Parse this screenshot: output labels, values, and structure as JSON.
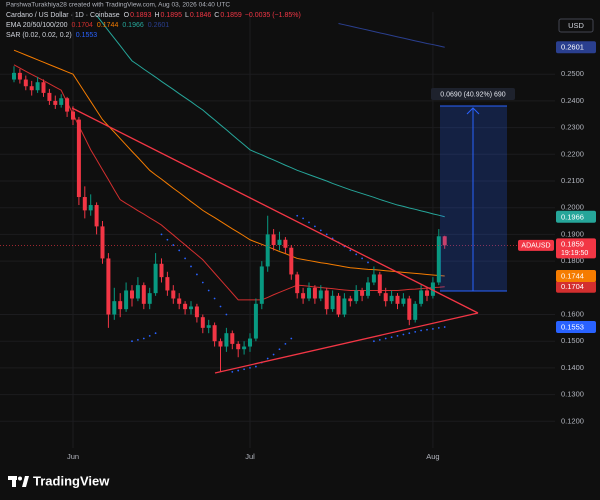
{
  "header": {
    "attribution": "ParshwaTurakhiya28 created with TradingView.com, Aug 03, 2026 04:40 UTC"
  },
  "footer": {
    "brand": "TradingView"
  },
  "chart_data": {
    "type": "candlestick",
    "title": "Cardano / US Dollar · 1D · Coinbase",
    "ohlc_labels": [
      "O",
      "H",
      "L",
      "C"
    ],
    "change": "−0.0035 (−1.85%)",
    "currency": "USD",
    "symbol": "ADAUSD",
    "countdown": "19:19:50",
    "annotations": {
      "measure_label": "0.0690 (40.92%) 690"
    },
    "categories": [
      null,
      null,
      null,
      null,
      null,
      null,
      null,
      null,
      null,
      null,
      "Jun",
      null,
      null,
      null,
      null,
      null,
      null,
      null,
      null,
      null,
      null,
      null,
      null,
      null,
      null,
      null,
      null,
      null,
      null,
      null,
      null,
      null,
      null,
      null,
      null,
      null,
      null,
      null,
      null,
      null,
      "Jul",
      null,
      null,
      null,
      null,
      null,
      null,
      null,
      null,
      null,
      null,
      null,
      null,
      null,
      null,
      null,
      null,
      null,
      null,
      null,
      null,
      null,
      null,
      null,
      null,
      null,
      null,
      null,
      null,
      null,
      null,
      "Aug",
      null,
      null
    ],
    "candles": {
      "up_color": "#089981",
      "down_color": "#f23645",
      "open": [
        0.248,
        0.2505,
        0.248,
        0.2455,
        0.244,
        0.247,
        0.243,
        0.24,
        0.2385,
        0.241,
        0.236,
        0.233,
        0.204,
        0.199,
        0.201,
        0.193,
        0.181,
        0.16,
        0.165,
        0.162,
        0.169,
        0.166,
        0.171,
        0.164,
        0.168,
        0.179,
        0.174,
        0.169,
        0.166,
        0.164,
        0.162,
        0.163,
        0.159,
        0.155,
        0.156,
        0.15,
        0.148,
        0.153,
        0.149,
        0.147,
        0.148,
        0.151,
        0.164,
        0.178,
        0.19,
        0.186,
        0.188,
        0.185,
        0.175,
        0.168,
        0.166,
        0.17,
        0.166,
        0.169,
        0.162,
        0.167,
        0.16,
        0.166,
        0.165,
        0.169,
        0.167,
        0.172,
        0.175,
        0.168,
        0.165,
        0.167,
        0.164,
        0.166,
        0.158,
        0.164,
        0.169,
        0.167,
        0.172,
        0.1893
      ],
      "high": [
        0.253,
        0.252,
        0.2495,
        0.2475,
        0.249,
        0.248,
        0.2445,
        0.242,
        0.2425,
        0.2415,
        0.238,
        0.234,
        0.208,
        0.205,
        0.202,
        0.195,
        0.183,
        0.17,
        0.168,
        0.172,
        0.171,
        0.174,
        0.172,
        0.17,
        0.183,
        0.181,
        0.176,
        0.171,
        0.168,
        0.165,
        0.165,
        0.164,
        0.16,
        0.158,
        0.157,
        0.151,
        0.155,
        0.154,
        0.15,
        0.15,
        0.153,
        0.166,
        0.18,
        0.197,
        0.192,
        0.191,
        0.189,
        0.186,
        0.176,
        0.17,
        0.172,
        0.171,
        0.171,
        0.17,
        0.169,
        0.168,
        0.168,
        0.167,
        0.171,
        0.17,
        0.174,
        0.178,
        0.176,
        0.17,
        0.169,
        0.168,
        0.168,
        0.167,
        0.165,
        0.171,
        0.17,
        0.174,
        0.192,
        0.1895
      ],
      "low": [
        0.247,
        0.2465,
        0.244,
        0.242,
        0.243,
        0.2415,
        0.2385,
        0.237,
        0.2375,
        0.234,
        0.231,
        0.201,
        0.196,
        0.197,
        0.19,
        0.179,
        0.155,
        0.158,
        0.159,
        0.161,
        0.163,
        0.165,
        0.162,
        0.162,
        0.167,
        0.172,
        0.167,
        0.164,
        0.162,
        0.16,
        0.16,
        0.157,
        0.153,
        0.153,
        0.148,
        0.1385,
        0.146,
        0.147,
        0.144,
        0.145,
        0.146,
        0.15,
        0.162,
        0.176,
        0.184,
        0.184,
        0.183,
        0.173,
        0.166,
        0.164,
        0.165,
        0.164,
        0.165,
        0.16,
        0.161,
        0.159,
        0.159,
        0.163,
        0.164,
        0.165,
        0.166,
        0.171,
        0.167,
        0.163,
        0.164,
        0.162,
        0.163,
        0.156,
        0.157,
        0.163,
        0.165,
        0.166,
        0.171,
        0.1846
      ],
      "close": [
        0.2505,
        0.248,
        0.2455,
        0.244,
        0.247,
        0.243,
        0.24,
        0.2385,
        0.241,
        0.236,
        0.233,
        0.204,
        0.199,
        0.201,
        0.193,
        0.181,
        0.16,
        0.165,
        0.162,
        0.169,
        0.166,
        0.171,
        0.164,
        0.168,
        0.179,
        0.174,
        0.169,
        0.166,
        0.164,
        0.162,
        0.163,
        0.159,
        0.155,
        0.156,
        0.15,
        0.148,
        0.153,
        0.149,
        0.147,
        0.148,
        0.151,
        0.164,
        0.178,
        0.19,
        0.186,
        0.188,
        0.185,
        0.175,
        0.168,
        0.166,
        0.17,
        0.166,
        0.169,
        0.162,
        0.167,
        0.16,
        0.166,
        0.165,
        0.169,
        0.167,
        0.172,
        0.175,
        0.168,
        0.165,
        0.167,
        0.164,
        0.166,
        0.158,
        0.164,
        0.169,
        0.167,
        0.172,
        0.1893,
        0.1859
      ]
    },
    "indicators": [
      {
        "name": "EMA 20/50/100/200",
        "lines": [
          {
            "color": "#d32f2f",
            "values": [
              0.2535,
              0.2523,
              0.2511,
              0.2499,
              0.2488,
              0.2476,
              0.2464,
              0.2452,
              0.244,
              0.2395,
              0.2351,
              0.2306,
              0.2262,
              0.2217,
              0.218,
              0.2142,
              0.2105,
              0.2067,
              0.203,
              0.2016,
              0.2003,
              0.1989,
              0.1976,
              0.1962,
              0.1949,
              0.1935,
              0.1916,
              0.1898,
              0.1879,
              0.1861,
              0.1842,
              0.1824,
              0.1805,
              0.178,
              0.1755,
              0.173,
              0.1705,
              0.168,
              0.1655,
              0.1655,
              0.1655,
              0.1655,
              0.1655,
              0.1664,
              0.1674,
              0.1683,
              0.1692,
              0.1701,
              0.171,
              0.1708,
              0.1706,
              0.1703,
              0.1701,
              0.1699,
              0.1697,
              0.1694,
              0.1692,
              0.169,
              0.169,
              0.169,
              0.169,
              0.169,
              0.169,
              0.169,
              0.169,
              0.169,
              0.1692,
              0.1694,
              0.1695,
              0.1697,
              0.1699,
              0.1701,
              0.1702,
              0.1704
            ]
          },
          {
            "color": "#f57c00",
            "values": [
              0.259,
              0.2581,
              0.2572,
              0.2563,
              0.2554,
              0.2545,
              0.2536,
              0.2527,
              0.2518,
              0.2509,
              0.25,
              0.2466,
              0.2432,
              0.2398,
              0.2364,
              0.233,
              0.2306,
              0.2283,
              0.2259,
              0.2235,
              0.2211,
              0.2188,
              0.2164,
              0.214,
              0.2123,
              0.2107,
              0.209,
              0.2073,
              0.2057,
              0.204,
              0.2023,
              0.2007,
              0.199,
              0.1976,
              0.1963,
              0.1949,
              0.1935,
              0.1921,
              0.1908,
              0.1894,
              0.188,
              0.1871,
              0.1863,
              0.1854,
              0.1845,
              0.1836,
              0.1828,
              0.1819,
              0.181,
              0.1806,
              0.1802,
              0.1798,
              0.1794,
              0.1791,
              0.1787,
              0.1783,
              0.1779,
              0.1775,
              0.1773,
              0.1771,
              0.1769,
              0.1768,
              0.1766,
              0.1764,
              0.1762,
              0.176,
              0.1758,
              0.1756,
              0.1754,
              0.1752,
              0.175,
              0.1748,
              0.1746,
              0.1744
            ]
          },
          {
            "color": "#26a69a",
            "values": [
              null,
              null,
              null,
              null,
              null,
              null,
              null,
              null,
              null,
              null,
              null,
              null,
              null,
              null,
              0.272,
              0.2692,
              0.2663,
              0.2635,
              0.2607,
              0.2578,
              0.255,
              0.2535,
              0.2519,
              0.2504,
              0.2489,
              0.2473,
              0.2458,
              0.2443,
              0.2427,
              0.2412,
              0.2397,
              0.2381,
              0.2366,
              0.2347,
              0.2329,
              0.231,
              0.2292,
              0.2273,
              0.2254,
              0.2236,
              0.2217,
              0.2207,
              0.2198,
              0.2188,
              0.2179,
              0.2169,
              0.2159,
              0.215,
              0.214,
              0.2132,
              0.2124,
              0.2116,
              0.2108,
              0.21,
              0.2091,
              0.2083,
              0.2075,
              0.2067,
              0.206,
              0.2053,
              0.2046,
              0.2039,
              0.2031,
              0.2024,
              0.2017,
              0.201,
              0.2005,
              0.1999,
              0.1994,
              0.1988,
              0.1983,
              0.1977,
              0.1972,
              0.1966
            ]
          },
          {
            "color": "#2a3f8f",
            "values": [
              null,
              null,
              null,
              null,
              null,
              null,
              null,
              null,
              null,
              null,
              null,
              null,
              null,
              null,
              null,
              null,
              null,
              null,
              null,
              null,
              null,
              null,
              null,
              null,
              null,
              null,
              null,
              null,
              null,
              null,
              null,
              null,
              null,
              null,
              null,
              null,
              null,
              null,
              null,
              null,
              null,
              null,
              null,
              null,
              null,
              null,
              null,
              null,
              null,
              null,
              null,
              null,
              null,
              null,
              null,
              0.269,
              0.2685,
              0.268,
              0.2675,
              0.267,
              0.2665,
              0.266,
              0.2655,
              0.265,
              0.2645,
              0.264,
              0.2635,
              0.263,
              0.2625,
              0.262,
              0.2615,
              0.2611,
              0.2606,
              0.2601
            ]
          }
        ]
      },
      {
        "name": "SAR (0.02, 0.02, 0.2)",
        "color": "#2962ff",
        "values": [
          null,
          null,
          null,
          null,
          null,
          null,
          null,
          null,
          null,
          null,
          null,
          null,
          null,
          null,
          null,
          null,
          null,
          null,
          null,
          null,
          0.15,
          0.1505,
          0.151,
          0.152,
          0.153,
          0.19,
          0.188,
          0.186,
          0.184,
          0.181,
          0.178,
          0.175,
          0.172,
          0.169,
          0.166,
          0.163,
          0.16,
          0.1385,
          0.139,
          0.1395,
          0.14,
          0.1405,
          0.142,
          0.1435,
          0.145,
          0.147,
          0.149,
          0.151,
          0.197,
          0.196,
          0.1945,
          0.193,
          0.1915,
          0.19,
          0.1885,
          0.187,
          0.1855,
          0.184,
          0.1825,
          0.181,
          0.1795,
          0.15,
          0.1505,
          0.151,
          0.1515,
          0.152,
          0.1525,
          0.153,
          0.1535,
          0.154,
          0.1543,
          0.1546,
          0.155,
          0.1553
        ]
      }
    ],
    "ylim": [
      0.11,
      0.2733
    ],
    "yticks": [
      {
        "value": 0.12,
        "label": "0.1200"
      },
      {
        "value": 0.13,
        "label": "0.1300"
      },
      {
        "value": 0.14,
        "label": "0.1400"
      },
      {
        "value": 0.15,
        "label": "0.1500"
      },
      {
        "value": 0.16,
        "label": "0.1600"
      },
      {
        "value": 0.18,
        "label": "0.1800"
      },
      {
        "value": 0.19,
        "label": "0.1900"
      },
      {
        "value": 0.2,
        "label": "0.2000"
      },
      {
        "value": 0.21,
        "label": "0.2100"
      },
      {
        "value": 0.22,
        "label": "0.2200"
      },
      {
        "value": 0.23,
        "label": "0.2300"
      },
      {
        "value": 0.24,
        "label": "0.2400"
      },
      {
        "value": 0.25,
        "label": "0.2500"
      }
    ],
    "grid": true
  }
}
